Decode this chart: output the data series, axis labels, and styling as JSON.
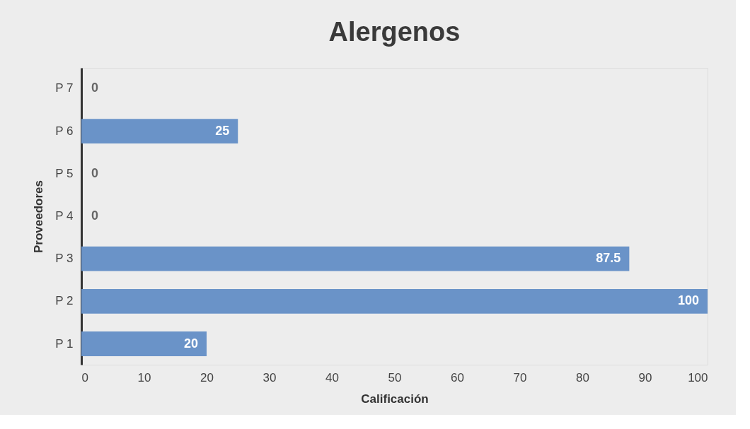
{
  "chart_data": {
    "type": "bar",
    "orientation": "horizontal",
    "title": "Alergenos",
    "xlabel": "Calificación",
    "ylabel": "Proveedores",
    "categories": [
      "P 7",
      "P 6",
      "P 5",
      "P 4",
      "P 3",
      "P 2",
      "P 1"
    ],
    "values": [
      0,
      25,
      0,
      0,
      87.5,
      100,
      20
    ],
    "color": "#6a93c8",
    "xlim": [
      0,
      100
    ],
    "xticks": [
      0,
      10,
      20,
      30,
      40,
      50,
      60,
      70,
      80,
      90,
      100
    ],
    "grid": false,
    "data_labels": true
  }
}
